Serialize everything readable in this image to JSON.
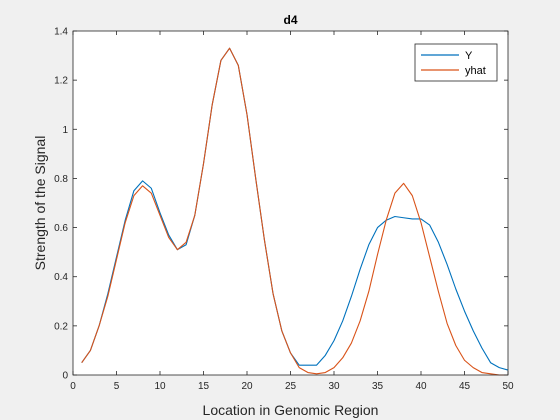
{
  "chart_data": {
    "type": "line",
    "title": "d4",
    "xlabel": "Location in Genomic Region",
    "ylabel": "Strength of the Signal",
    "xlim": [
      0,
      50
    ],
    "ylim": [
      0,
      1.4
    ],
    "xticks": [
      0,
      5,
      10,
      15,
      20,
      25,
      30,
      35,
      40,
      45,
      50
    ],
    "yticks": [
      0,
      0.2,
      0.4,
      0.6,
      0.8,
      1,
      1.2,
      1.4
    ],
    "xtick_labels": [
      "0",
      "5",
      "10",
      "15",
      "20",
      "25",
      "30",
      "35",
      "40",
      "45",
      "50"
    ],
    "ytick_labels": [
      "0",
      "0.2",
      "0.4",
      "0.6",
      "0.8",
      "1",
      "1.2",
      "1.4"
    ],
    "grid": false,
    "legend_position": "top-right",
    "x": [
      1,
      2,
      3,
      4,
      5,
      6,
      7,
      8,
      9,
      10,
      11,
      12,
      13,
      14,
      15,
      16,
      17,
      18,
      19,
      20,
      21,
      22,
      23,
      24,
      25,
      26,
      27,
      28,
      29,
      30,
      31,
      32,
      33,
      34,
      35,
      36,
      37,
      38,
      39,
      40,
      41,
      42,
      43,
      44,
      45,
      46,
      47,
      48,
      49,
      50
    ],
    "series": [
      {
        "name": "Y",
        "color": "#0072BD",
        "values": [
          0.05,
          0.1,
          0.2,
          0.33,
          0.48,
          0.63,
          0.75,
          0.79,
          0.76,
          0.66,
          0.57,
          0.51,
          0.53,
          0.65,
          0.86,
          1.1,
          1.28,
          1.33,
          1.26,
          1.06,
          0.8,
          0.55,
          0.33,
          0.18,
          0.09,
          0.04,
          0.04,
          0.04,
          0.08,
          0.14,
          0.22,
          0.32,
          0.43,
          0.53,
          0.6,
          0.63,
          0.645,
          0.64,
          0.635,
          0.635,
          0.61,
          0.54,
          0.45,
          0.35,
          0.26,
          0.18,
          0.11,
          0.05,
          0.03,
          0.02
        ]
      },
      {
        "name": "yhat",
        "color": "#D95319",
        "values": [
          0.05,
          0.1,
          0.2,
          0.32,
          0.47,
          0.62,
          0.73,
          0.77,
          0.74,
          0.65,
          0.56,
          0.51,
          0.54,
          0.65,
          0.86,
          1.1,
          1.28,
          1.33,
          1.26,
          1.06,
          0.8,
          0.55,
          0.33,
          0.18,
          0.09,
          0.03,
          0.01,
          0.005,
          0.01,
          0.03,
          0.07,
          0.13,
          0.22,
          0.34,
          0.49,
          0.63,
          0.74,
          0.78,
          0.73,
          0.62,
          0.48,
          0.34,
          0.21,
          0.12,
          0.06,
          0.03,
          0.01,
          0.005,
          0.0,
          0.0
        ]
      }
    ]
  }
}
